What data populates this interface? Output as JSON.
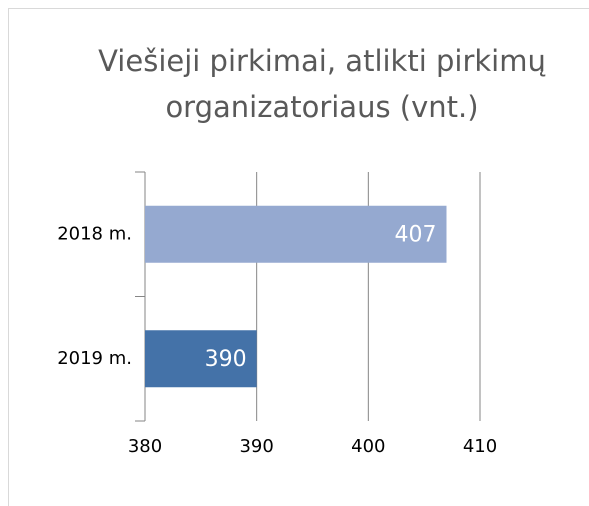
{
  "chart_data": {
    "type": "hbar",
    "title": "Viešieji pirkimai, atlikti pirkimų organizatoriaus (vnt.)",
    "categories": [
      "2018 m.",
      "2019 m."
    ],
    "values": [
      407,
      390
    ],
    "colors": [
      "#95a9d0",
      "#4472a8"
    ],
    "xlim": [
      380,
      410
    ],
    "xticks": [
      380,
      390,
      400,
      410
    ],
    "grid": true
  }
}
